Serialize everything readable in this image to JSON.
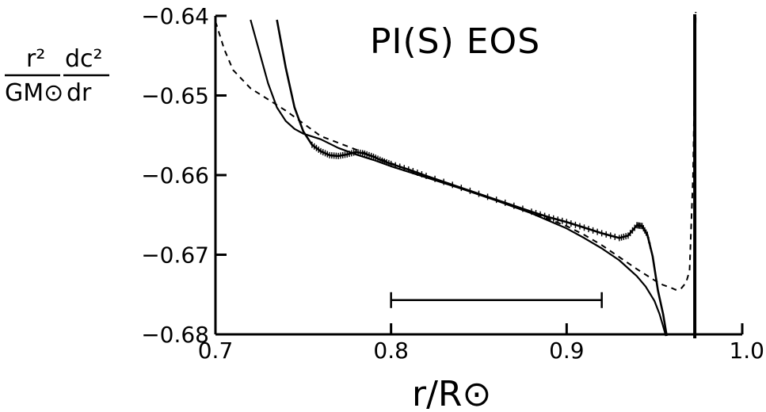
{
  "chart_data": {
    "type": "line",
    "title": "PI(S) EOS",
    "xlabel": "r/R⊙",
    "ylabel": {
      "left_numerator": "r²",
      "left_denominator": "GM⊙",
      "right_numerator": "dc²",
      "right_denominator": "dr"
    },
    "xlim": [
      0.7,
      1.0
    ],
    "ylim": [
      -0.68,
      -0.64
    ],
    "xticks": [
      0.7,
      0.8,
      0.9,
      1.0
    ],
    "xtick_labels": [
      "0.7",
      "0.8",
      "0.9",
      "1.0"
    ],
    "yticks": [
      -0.64,
      -0.65,
      -0.66,
      -0.67,
      -0.68
    ],
    "ytick_labels": [
      "−0.64",
      "−0.65",
      "−0.66",
      "−0.67",
      "−0.68"
    ],
    "grid": false,
    "legend": false,
    "error_bar": {
      "x_start": 0.8,
      "x_end": 0.92,
      "y": -0.6757
    },
    "series": [
      {
        "style": "dashed",
        "x": [
          0.7,
          0.705,
          0.71,
          0.72,
          0.73,
          0.74,
          0.75,
          0.76,
          0.78,
          0.8,
          0.82,
          0.84,
          0.86,
          0.88,
          0.9,
          0.91,
          0.92,
          0.93,
          0.94,
          0.95,
          0.955,
          0.96,
          0.962,
          0.965,
          0.968,
          0.97,
          0.972,
          0.9735
        ],
        "y": [
          -0.6407,
          -0.6442,
          -0.6468,
          -0.6491,
          -0.6505,
          -0.6519,
          -0.6535,
          -0.6551,
          -0.6568,
          -0.6585,
          -0.6602,
          -0.6617,
          -0.6631,
          -0.6647,
          -0.6664,
          -0.6675,
          -0.6688,
          -0.6703,
          -0.6718,
          -0.6732,
          -0.6738,
          -0.6742,
          -0.6744,
          -0.6743,
          -0.6735,
          -0.672,
          -0.66,
          -0.6395
        ]
      },
      {
        "style": "solid",
        "x": [
          0.72,
          0.725,
          0.73,
          0.735,
          0.74,
          0.745,
          0.75,
          0.76,
          0.77,
          0.78,
          0.79,
          0.8,
          0.82,
          0.84,
          0.86,
          0.88,
          0.9,
          0.91,
          0.92,
          0.93,
          0.94,
          0.945,
          0.95,
          0.953,
          0.955,
          0.9565
        ],
        "y": [
          -0.6405,
          -0.6445,
          -0.6485,
          -0.6515,
          -0.6532,
          -0.6542,
          -0.6548,
          -0.6555,
          -0.6566,
          -0.6574,
          -0.6581,
          -0.6589,
          -0.6603,
          -0.6617,
          -0.6632,
          -0.6648,
          -0.6667,
          -0.6679,
          -0.6692,
          -0.6707,
          -0.6727,
          -0.674,
          -0.6758,
          -0.6775,
          -0.679,
          -0.6802
        ]
      },
      {
        "style": "solid-markers",
        "x": [
          0.735,
          0.74,
          0.745,
          0.75,
          0.755,
          0.76,
          0.765,
          0.77,
          0.775,
          0.78,
          0.785,
          0.79,
          0.795,
          0.8,
          0.81,
          0.82,
          0.84,
          0.86,
          0.88,
          0.89,
          0.9,
          0.91,
          0.92,
          0.93,
          0.935,
          0.94,
          0.943,
          0.946,
          0.949,
          0.952,
          0.955,
          0.957
        ],
        "y": [
          -0.6405,
          -0.6465,
          -0.6515,
          -0.6545,
          -0.6562,
          -0.657,
          -0.6575,
          -0.6576,
          -0.6574,
          -0.6571,
          -0.6573,
          -0.6577,
          -0.6582,
          -0.6586,
          -0.6593,
          -0.6601,
          -0.6616,
          -0.6631,
          -0.6646,
          -0.6653,
          -0.6659,
          -0.6666,
          -0.6673,
          -0.6679,
          -0.6676,
          -0.6663,
          -0.6664,
          -0.6675,
          -0.6702,
          -0.6745,
          -0.6775,
          -0.6802
        ]
      },
      {
        "style": "solid-vertical",
        "x": [
          0.973,
          0.973
        ],
        "y": [
          -0.6805,
          -0.6398
        ]
      }
    ]
  }
}
